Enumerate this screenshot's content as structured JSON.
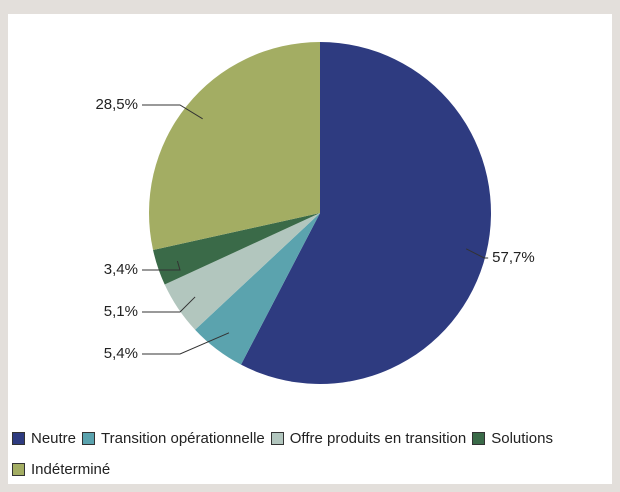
{
  "chart_data": {
    "type": "pie",
    "categories": [
      "Neutre",
      "Transition opérationnelle",
      "Offre produits en transition",
      "Solutions",
      "Indéterminé"
    ],
    "values": [
      57.7,
      5.4,
      5.1,
      3.4,
      28.5
    ],
    "value_labels": [
      "57,7%",
      "5,4%",
      "5,1%",
      "3,4%",
      "28,5%"
    ],
    "colors": [
      "#2e3b80",
      "#5ba3ae",
      "#b2c6be",
      "#3a6a48",
      "#a3ad63"
    ]
  }
}
